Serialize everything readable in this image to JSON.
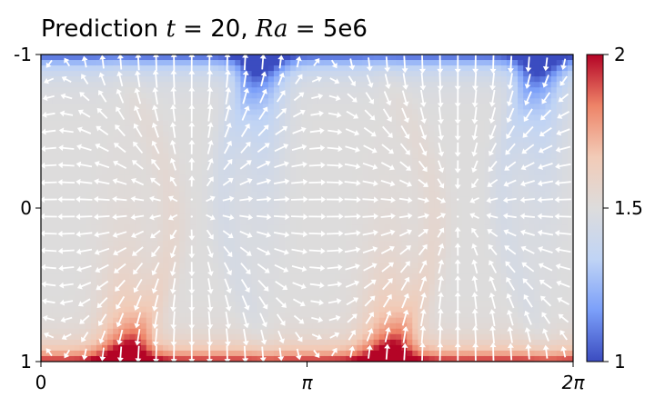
{
  "chart_data": {
    "type": "heatmap",
    "title": "Prediction t = 20, Ra = 5e6",
    "title_parts": {
      "prefix": "Prediction ",
      "t_symbol": "t",
      "equals": " = ",
      "t_value": "20",
      "sep": ", ",
      "ra_symbol": "Ra",
      "ra_value": "5e6"
    },
    "x_ticks": {
      "values": [
        0,
        3.14159,
        6.28319
      ],
      "labels": [
        "0",
        "π",
        "2π"
      ]
    },
    "y_ticks": {
      "values": [
        -1,
        0,
        1
      ],
      "labels": [
        "-1",
        "0",
        "1"
      ]
    },
    "xlim": [
      0,
      6.28319
    ],
    "ylim": [
      -1,
      1
    ],
    "y_inverted": true,
    "colorbar": {
      "range": [
        1,
        2
      ],
      "ticks": [
        2,
        1.5,
        1
      ],
      "tick_labels": [
        "2",
        "1.5",
        "1"
      ],
      "colormap": "coolwarm",
      "colors": [
        "#3b4cc0",
        "#7b9ff9",
        "#c0d4f5",
        "#dddcdc",
        "#f2cbb7",
        "#ee8468",
        "#b40426"
      ]
    },
    "field": {
      "description_values": "temperature-like scalar in [1,2]; hot (2) plume rising from bottom near x≈1.0 and x≈4.1, cold (1) plume sinking from top near x≈2.6 and x≈5.9",
      "hot_plume_x": [
        1.0,
        4.1
      ],
      "cold_plume_x": [
        2.6,
        5.9
      ],
      "bottom_value": 2.0,
      "top_value": 1.0,
      "interior_value": 1.5
    },
    "vector_field": {
      "type": "quiver",
      "color": "#ffffff",
      "vortex_centers_x": [
        1.8,
        5.0
      ],
      "vortex_center_y": 0.0
    }
  }
}
